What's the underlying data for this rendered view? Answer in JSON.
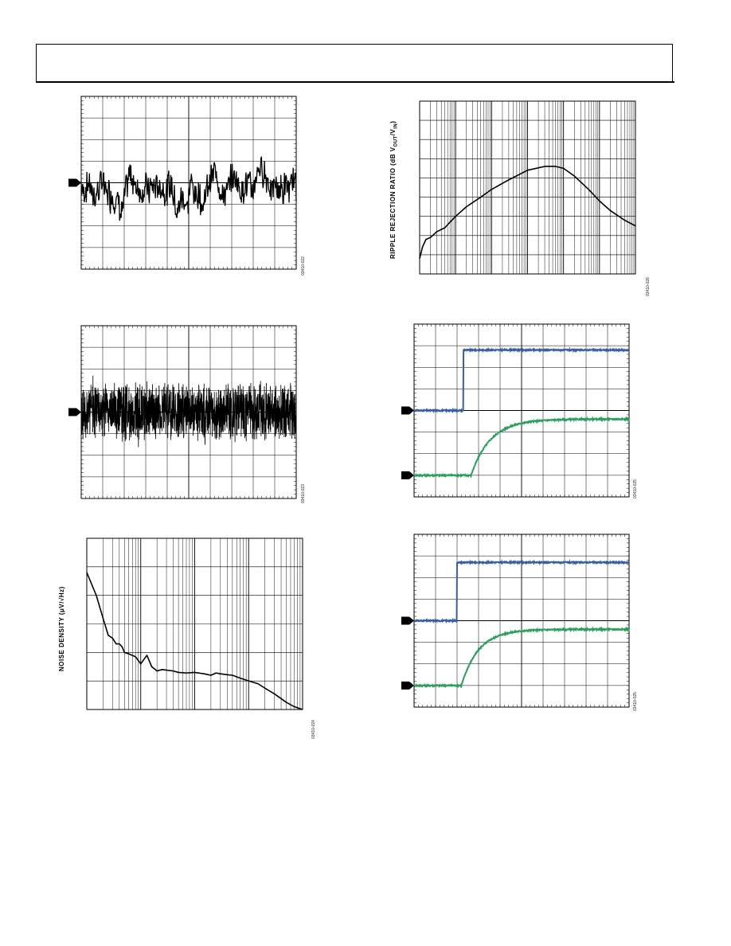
{
  "page": {
    "figure_ids": [
      "03410-022",
      "03410-023",
      "03410-024",
      "03410-026",
      "03410-025",
      "03410-025"
    ]
  },
  "chart_data": [
    {
      "id": "fig-noise-lowfreq",
      "type": "line",
      "title": "",
      "xlabel": "",
      "ylabel": "",
      "grid": true,
      "series": [
        {
          "name": "",
          "color": "#000000",
          "kind": "noise",
          "seed": 7,
          "amp": 0.55,
          "center": 0.0
        }
      ],
      "ylim": [
        -4,
        4
      ],
      "marker": "0"
    },
    {
      "id": "fig-noise-wideband",
      "type": "line",
      "title": "",
      "xlabel": "",
      "ylabel": "",
      "grid": true,
      "series": [
        {
          "name": "",
          "color": "#000000",
          "kind": "noise-dense",
          "seed": 13,
          "amp": 1.1,
          "center": 0.0
        }
      ],
      "ylim": [
        -4,
        4
      ],
      "marker": "0"
    },
    {
      "id": "fig-noise-density",
      "type": "line",
      "title": "",
      "xlabel": "",
      "ylabel": "NOISE DENSITY (μV/√Hz)",
      "log_x": true,
      "grid": true,
      "xlim": [
        10,
        100000
      ],
      "ylim": [
        0,
        6
      ],
      "series": [
        {
          "name": "",
          "color": "#000000",
          "x": [
            10,
            15,
            20,
            25,
            30,
            35,
            40,
            45,
            50,
            60,
            80,
            100,
            130,
            160,
            200,
            250,
            300,
            400,
            500,
            700,
            1000,
            1500,
            2000,
            2500,
            3000,
            4000,
            5000,
            7000,
            10000,
            15000,
            20000,
            30000,
            50000,
            70000,
            100000
          ],
          "y": [
            4.8,
            4.0,
            3.2,
            2.6,
            2.5,
            2.3,
            2.3,
            2.2,
            2.0,
            1.95,
            1.85,
            1.6,
            1.9,
            1.5,
            1.35,
            1.4,
            1.38,
            1.35,
            1.3,
            1.28,
            1.3,
            1.25,
            1.2,
            1.28,
            1.25,
            1.22,
            1.2,
            1.1,
            1.0,
            0.9,
            0.75,
            0.55,
            0.25,
            0.1,
            0.0
          ]
        }
      ]
    },
    {
      "id": "fig-ripple-rejection",
      "type": "line",
      "title": "",
      "xlabel": "",
      "ylabel": "RIPPLE REJECTION RATIO (dB V",
      "ylabel_sub1": "OUT",
      "ylabel_mid": "/V",
      "ylabel_sub2": "IN",
      "ylabel_end": ")",
      "log_x": true,
      "grid": true,
      "xlim": [
        10,
        10000000
      ],
      "ylim": [
        -90,
        0
      ],
      "series": [
        {
          "name": "",
          "color": "#000000",
          "x": [
            10,
            12,
            15,
            20,
            30,
            50,
            70,
            100,
            200,
            500,
            1000,
            3000,
            10000,
            30000,
            60000,
            100000,
            200000,
            500000,
            1000000,
            2000000,
            5000000,
            10000000
          ],
          "y": [
            -82,
            -76,
            -72,
            -71,
            -68,
            -66,
            -63,
            -60,
            -55,
            -50,
            -46,
            -41,
            -36,
            -34,
            -34,
            -35,
            -39,
            -46,
            -52,
            -57,
            -62,
            -65
          ]
        }
      ]
    },
    {
      "id": "fig-transient-1",
      "type": "line",
      "title": "",
      "xlabel": "",
      "ylabel": "",
      "grid": true,
      "series": [
        {
          "name": "",
          "color": "#3a5fa0",
          "kind": "step",
          "t_step": 0.23,
          "low": 3.0,
          "high": 5.8,
          "tau": 0.0
        },
        {
          "name": "",
          "color": "#2e9e5e",
          "kind": "rc",
          "t_step": 0.265,
          "low": 0.0,
          "high": 2.6,
          "tau": 0.09
        }
      ],
      "ylim": [
        -1,
        7
      ],
      "markers": [
        "1",
        "2"
      ]
    },
    {
      "id": "fig-transient-2",
      "type": "line",
      "title": "",
      "xlabel": "",
      "ylabel": "",
      "grid": true,
      "series": [
        {
          "name": "",
          "color": "#3a5fa0",
          "kind": "step",
          "t_step": 0.2,
          "low": 4.0,
          "high": 6.7,
          "tau": 0.0
        },
        {
          "name": "",
          "color": "#2e9e5e",
          "kind": "rc",
          "t_step": 0.22,
          "low": 1.0,
          "high": 3.6,
          "tau": 0.08
        }
      ],
      "ylim": [
        0,
        8
      ],
      "markers": [
        "1",
        "2"
      ]
    }
  ]
}
